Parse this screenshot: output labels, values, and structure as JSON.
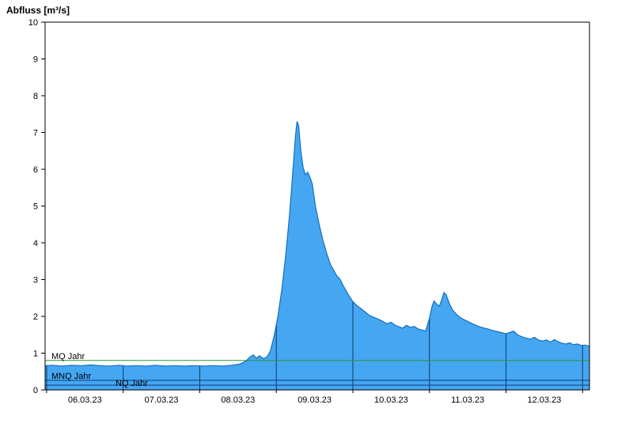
{
  "chart_data": {
    "type": "area",
    "title": "Abfluss [m³/s]",
    "ylabel": "Abfluss [m³/s]",
    "xlabel": "",
    "ylim": [
      0,
      10
    ],
    "y_ticks": [
      0,
      1,
      2,
      3,
      4,
      5,
      6,
      7,
      8,
      9,
      10
    ],
    "x_tick_labels": [
      "06.03.23",
      "07.03.23",
      "08.03.23",
      "09.03.23",
      "10.03.23",
      "11.03.23",
      "12.03.23"
    ],
    "x_domain_days": [
      -0.02,
      7.09
    ],
    "day_boundaries": [
      0,
      1,
      2,
      3,
      4,
      5,
      6,
      7
    ],
    "grid": "vertical lines at day boundaries, clipped to filled area",
    "legend_position": "none",
    "colors": {
      "area_fill": "#45a6f2",
      "area_line": "#1470bd",
      "grid_line": "#0e3a66",
      "axis": "#000000",
      "text": "#000000"
    },
    "reference_lines": [
      {
        "label": "MQ Jahr",
        "value": 0.8,
        "color": "#2f9632"
      },
      {
        "label": "MNQ Jahr",
        "value": 0.26,
        "color": "#103c78"
      },
      {
        "label": "NQ Jahr",
        "value": 0.13,
        "color": "#103c78"
      }
    ],
    "series": [
      {
        "name": "Abfluss",
        "unit": "m³/s",
        "points": [
          [
            -0.02,
            0.66
          ],
          [
            0.08,
            0.67
          ],
          [
            0.2,
            0.65
          ],
          [
            0.32,
            0.67
          ],
          [
            0.45,
            0.66
          ],
          [
            0.58,
            0.68
          ],
          [
            0.7,
            0.66
          ],
          [
            0.82,
            0.65
          ],
          [
            0.95,
            0.67
          ],
          [
            1.05,
            0.65
          ],
          [
            1.18,
            0.66
          ],
          [
            1.3,
            0.65
          ],
          [
            1.42,
            0.67
          ],
          [
            1.55,
            0.65
          ],
          [
            1.68,
            0.66
          ],
          [
            1.8,
            0.65
          ],
          [
            1.92,
            0.66
          ],
          [
            2.05,
            0.65
          ],
          [
            2.18,
            0.66
          ],
          [
            2.3,
            0.65
          ],
          [
            2.42,
            0.67
          ],
          [
            2.52,
            0.7
          ],
          [
            2.6,
            0.78
          ],
          [
            2.66,
            0.9
          ],
          [
            2.7,
            0.95
          ],
          [
            2.74,
            0.86
          ],
          [
            2.78,
            0.93
          ],
          [
            2.83,
            0.85
          ],
          [
            2.88,
            0.9
          ],
          [
            2.92,
            1.05
          ],
          [
            2.97,
            1.45
          ],
          [
            3.02,
            2.0
          ],
          [
            3.07,
            2.7
          ],
          [
            3.12,
            3.6
          ],
          [
            3.17,
            4.7
          ],
          [
            3.21,
            5.8
          ],
          [
            3.25,
            6.9
          ],
          [
            3.27,
            7.3
          ],
          [
            3.29,
            7.2
          ],
          [
            3.32,
            6.5
          ],
          [
            3.35,
            6.05
          ],
          [
            3.38,
            5.85
          ],
          [
            3.41,
            5.92
          ],
          [
            3.44,
            5.78
          ],
          [
            3.47,
            5.6
          ],
          [
            3.51,
            5.0
          ],
          [
            3.56,
            4.5
          ],
          [
            3.61,
            4.05
          ],
          [
            3.66,
            3.7
          ],
          [
            3.71,
            3.4
          ],
          [
            3.75,
            3.25
          ],
          [
            3.79,
            3.1
          ],
          [
            3.83,
            3.02
          ],
          [
            3.87,
            2.85
          ],
          [
            3.91,
            2.7
          ],
          [
            3.95,
            2.55
          ],
          [
            4.0,
            2.4
          ],
          [
            4.05,
            2.3
          ],
          [
            4.1,
            2.22
          ],
          [
            4.16,
            2.12
          ],
          [
            4.22,
            2.02
          ],
          [
            4.3,
            1.95
          ],
          [
            4.38,
            1.88
          ],
          [
            4.44,
            1.8
          ],
          [
            4.5,
            1.84
          ],
          [
            4.55,
            1.76
          ],
          [
            4.6,
            1.72
          ],
          [
            4.65,
            1.68
          ],
          [
            4.7,
            1.76
          ],
          [
            4.75,
            1.7
          ],
          [
            4.8,
            1.73
          ],
          [
            4.85,
            1.66
          ],
          [
            4.9,
            1.63
          ],
          [
            4.95,
            1.6
          ],
          [
            5.0,
            1.95
          ],
          [
            5.03,
            2.25
          ],
          [
            5.06,
            2.42
          ],
          [
            5.1,
            2.32
          ],
          [
            5.13,
            2.28
          ],
          [
            5.16,
            2.45
          ],
          [
            5.19,
            2.65
          ],
          [
            5.22,
            2.58
          ],
          [
            5.26,
            2.35
          ],
          [
            5.3,
            2.18
          ],
          [
            5.35,
            2.06
          ],
          [
            5.4,
            1.97
          ],
          [
            5.46,
            1.9
          ],
          [
            5.52,
            1.84
          ],
          [
            5.58,
            1.78
          ],
          [
            5.64,
            1.73
          ],
          [
            5.7,
            1.69
          ],
          [
            5.76,
            1.66
          ],
          [
            5.82,
            1.62
          ],
          [
            5.88,
            1.59
          ],
          [
            5.94,
            1.56
          ],
          [
            6.0,
            1.53
          ],
          [
            6.06,
            1.57
          ],
          [
            6.1,
            1.6
          ],
          [
            6.15,
            1.5
          ],
          [
            6.2,
            1.45
          ],
          [
            6.26,
            1.41
          ],
          [
            6.32,
            1.38
          ],
          [
            6.37,
            1.43
          ],
          [
            6.42,
            1.36
          ],
          [
            6.48,
            1.33
          ],
          [
            6.53,
            1.36
          ],
          [
            6.58,
            1.3
          ],
          [
            6.63,
            1.37
          ],
          [
            6.68,
            1.31
          ],
          [
            6.73,
            1.27
          ],
          [
            6.78,
            1.25
          ],
          [
            6.83,
            1.28
          ],
          [
            6.88,
            1.23
          ],
          [
            6.93,
            1.25
          ],
          [
            6.98,
            1.21
          ],
          [
            7.03,
            1.22
          ],
          [
            7.09,
            1.19
          ]
        ]
      }
    ]
  }
}
